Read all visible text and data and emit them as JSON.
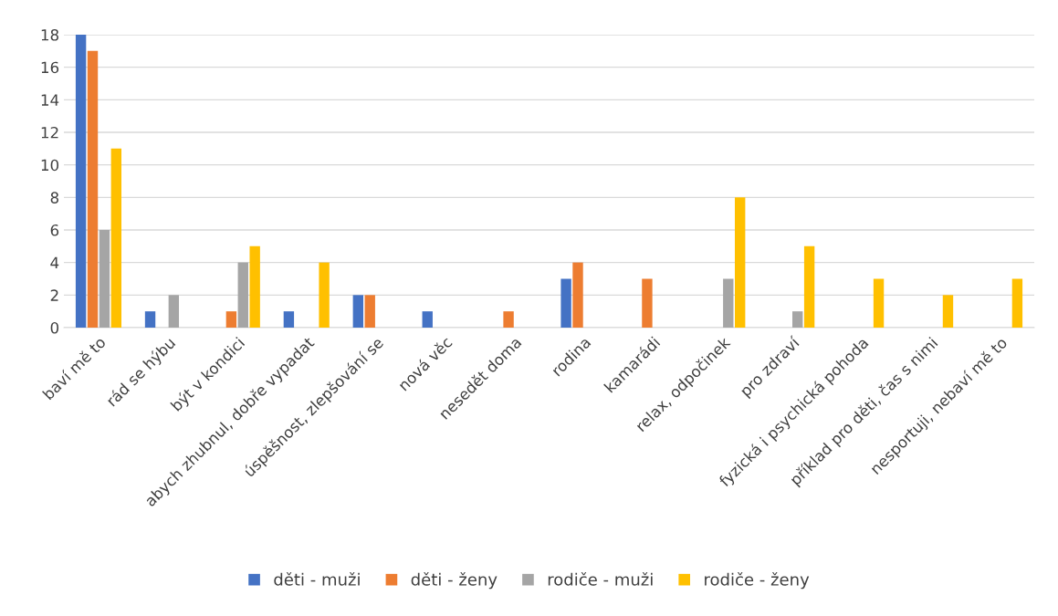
{
  "chart_data": {
    "type": "bar",
    "categories": [
      "baví mě to",
      "rád se hýbu",
      "být v kondici",
      "abych zhubnul, dobře vypadat",
      "úspěšnost, zlepšování se",
      "nová věc",
      "nesedět doma",
      "rodina",
      "kamarádi",
      "relax, odpočinek",
      "pro zdraví",
      "fyzická i psychická pohoda",
      "příklad pro děti, čas s nimi",
      "nesportuji, nebaví mě to"
    ],
    "series": [
      {
        "name": "děti - muži",
        "color": "#4472c4",
        "values": [
          18,
          1,
          0,
          1,
          2,
          1,
          0,
          3,
          0,
          0,
          0,
          0,
          0,
          0
        ]
      },
      {
        "name": "děti - ženy",
        "color": "#ed7d31",
        "values": [
          17,
          0,
          1,
          0,
          2,
          0,
          1,
          4,
          3,
          0,
          0,
          0,
          0,
          0
        ]
      },
      {
        "name": "rodiče - muži",
        "color": "#a5a5a5",
        "values": [
          6,
          2,
          4,
          0,
          0,
          0,
          0,
          0,
          0,
          3,
          1,
          0,
          0,
          0
        ]
      },
      {
        "name": "rodiče - ženy",
        "color": "#ffc000",
        "values": [
          11,
          0,
          5,
          4,
          0,
          0,
          0,
          0,
          0,
          8,
          5,
          3,
          2,
          3
        ]
      }
    ],
    "ylim": [
      0,
      18
    ],
    "yticks": [
      0,
      2,
      4,
      6,
      8,
      10,
      12,
      14,
      16,
      18
    ],
    "grid": "y",
    "legend": "bottom"
  }
}
